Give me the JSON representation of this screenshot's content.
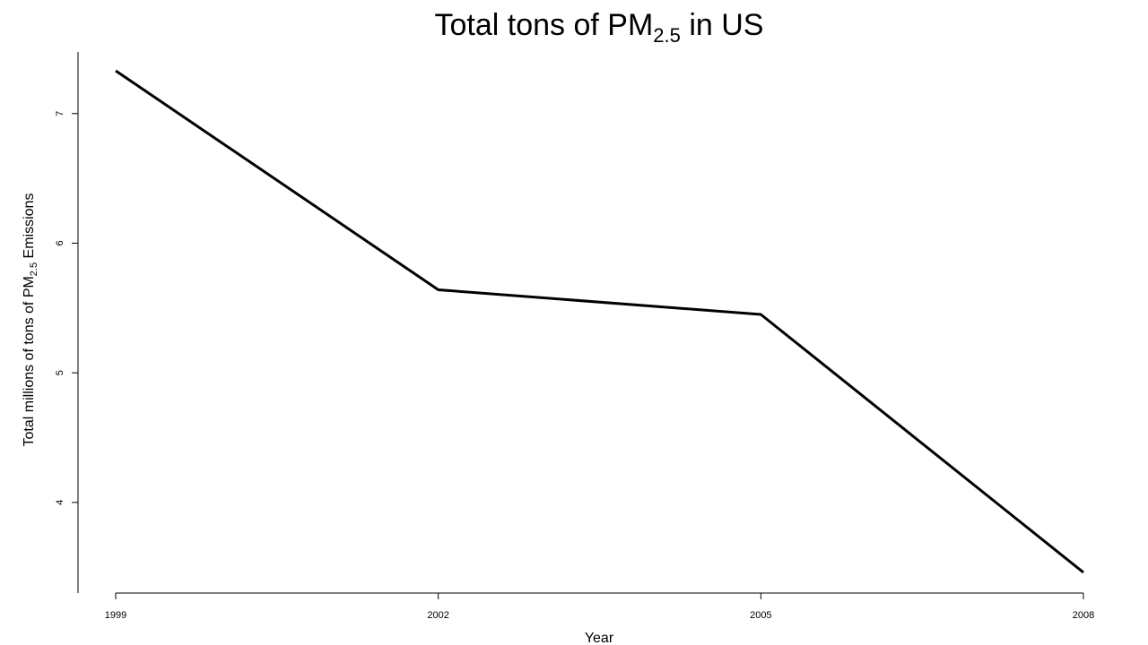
{
  "chart_data": {
    "type": "line",
    "title": {
      "main": "Total tons of PM",
      "subscript": "2.5",
      "suffix": " in US"
    },
    "xlabel": "Year",
    "ylabel": {
      "main": "Total millions of tons of PM",
      "subscript": "2.5",
      "suffix": " Emissions"
    },
    "x": [
      1999,
      2002,
      2005,
      2008
    ],
    "x_ticks": [
      "1999",
      "2002",
      "2005",
      "2008"
    ],
    "y_ticks": [
      "4",
      "5",
      "6",
      "7"
    ],
    "series": [
      {
        "values": [
          7.33,
          5.64,
          5.45,
          3.46
        ]
      }
    ],
    "xlim": [
      1999,
      2008
    ],
    "ylim": [
      3.46,
      7.33
    ],
    "grid": false,
    "line_color": "#000000"
  }
}
